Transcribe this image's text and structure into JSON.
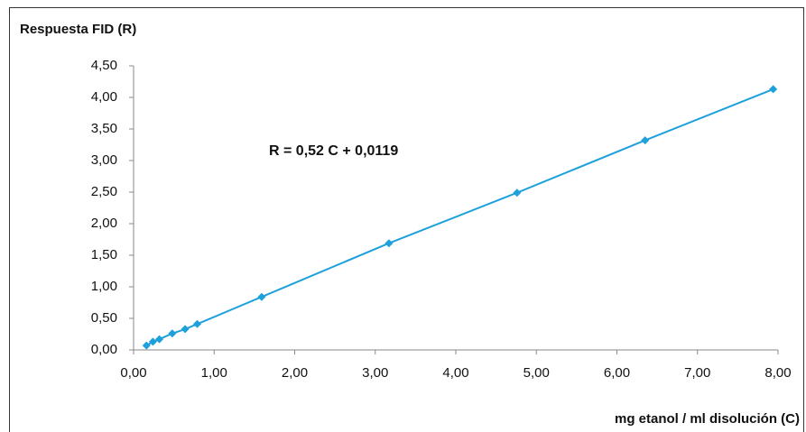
{
  "chart_data": {
    "type": "scatter",
    "y_label": "Respuesta FID (R)",
    "x_label": "mg  etanol /  ml disolución  (C)",
    "annotation": "R  =  0,52 C  +  0,0119",
    "series": [
      {
        "color": "#1ea0dc",
        "x": [
          0.16,
          0.24,
          0.32,
          0.48,
          0.64,
          0.79,
          1.59,
          3.17,
          4.76,
          6.35,
          7.94
        ],
        "values": [
          0.07,
          0.13,
          0.17,
          0.26,
          0.33,
          0.41,
          0.84,
          1.69,
          2.49,
          3.32,
          4.13
        ]
      }
    ],
    "xlim": [
      0,
      8
    ],
    "ylim": [
      0,
      4.5
    ],
    "xticks": [
      {
        "value": 0,
        "label": "0,00"
      },
      {
        "value": 1,
        "label": "1,00"
      },
      {
        "value": 2,
        "label": "2,00"
      },
      {
        "value": 3,
        "label": "3,00"
      },
      {
        "value": 4,
        "label": "4,00"
      },
      {
        "value": 5,
        "label": "5,00"
      },
      {
        "value": 6,
        "label": "6,00"
      },
      {
        "value": 7,
        "label": "7,00"
      },
      {
        "value": 8,
        "label": "8,00"
      }
    ],
    "yticks": [
      {
        "value": 0,
        "label": "0,00"
      },
      {
        "value": 0.5,
        "label": "0,50"
      },
      {
        "value": 1,
        "label": "1,00"
      },
      {
        "value": 1.5,
        "label": "1,50"
      },
      {
        "value": 2,
        "label": "2,00"
      },
      {
        "value": 2.5,
        "label": "2,50"
      },
      {
        "value": 3,
        "label": "3,00"
      },
      {
        "value": 3.5,
        "label": "3,50"
      },
      {
        "value": 4,
        "label": "4,00"
      },
      {
        "value": 4.5,
        "label": "4,50"
      }
    ],
    "grid": false
  }
}
